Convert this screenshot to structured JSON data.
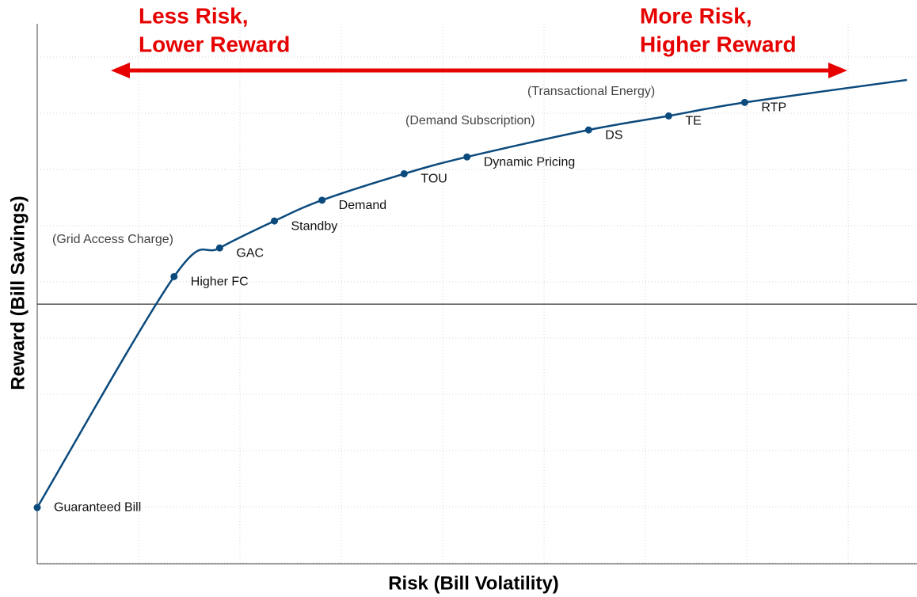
{
  "chart_data": {
    "type": "line",
    "x_label": "Risk (Bill Volatility)",
    "y_label": "Reward (Bill Savings)",
    "x": [
      0,
      1.35,
      1.8,
      2.34,
      2.81,
      3.62,
      4.24,
      5.44,
      6.23,
      6.98,
      8.58
    ],
    "values": [
      -3.62,
      0.49,
      1.0,
      1.48,
      1.85,
      2.32,
      2.62,
      3.1,
      3.35,
      3.59,
      3.99
    ],
    "point_labels": [
      "Guaranteed Bill",
      "Higher FC",
      "GAC",
      "Standby",
      "Demand",
      "TOU",
      "Dynamic Pricing",
      "DS",
      "TE",
      "RTP",
      null
    ],
    "color": "#0b4a7d",
    "xlim": [
      0,
      8.68
    ],
    "ylim": [
      -4.62,
      4.99
    ],
    "annotations": [
      "(Grid Access Charge)",
      "(Demand Subscription)",
      "(Transactional Energy)"
    ],
    "left_banner": [
      "Less Risk,",
      "Lower Reward"
    ],
    "right_banner": [
      "More Risk,",
      "Higher Reward"
    ]
  }
}
